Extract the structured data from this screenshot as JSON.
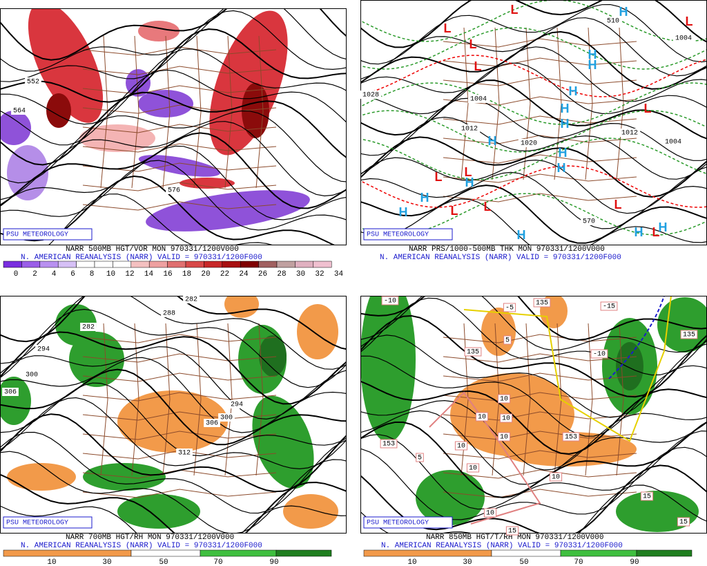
{
  "panels": [
    {
      "badge": "PSU METEOROLOGY",
      "title": "NARR 500MB HGT/VOR MON 970331/1200V000",
      "subtitle": "N. AMERICAN REANALYSIS (NARR) VALID = 970331/1200F000",
      "colorbar": [
        "0",
        "2",
        "4",
        "6",
        "8",
        "10",
        "12",
        "14",
        "16",
        "18",
        "20",
        "22",
        "24",
        "26",
        "28",
        "30",
        "32",
        "34"
      ],
      "contour_labels": [
        "552",
        "564",
        "576"
      ]
    },
    {
      "badge": "PSU METEOROLOGY",
      "title": "NARR PRS/1000-500MB THK MON 970331/1200V000",
      "subtitle": "N. AMERICAN REANALYSIS (NARR) VALID = 970331/1200F000",
      "contour_labels": [
        "1028",
        "1004",
        "1012",
        "1020",
        "1004",
        "1004",
        "510",
        "570",
        "1012"
      ],
      "centers": [
        "H",
        "H",
        "H",
        "H",
        "H",
        "H",
        "H",
        "H",
        "H",
        "H",
        "H",
        "H",
        "H",
        "H",
        "H",
        "L",
        "L",
        "L",
        "L",
        "L",
        "L",
        "L",
        "L",
        "L",
        "L",
        "L",
        "L"
      ]
    },
    {
      "badge": "PSU METEOROLOGY",
      "title": "NARR 700MB HGT/RH MON 970331/1200V000",
      "subtitle": "N. AMERICAN REANALYSIS (NARR) VALID = 970331/1200F000",
      "colorbar": [
        "10",
        "30",
        "50",
        "70",
        "90"
      ],
      "contour_labels": [
        "282",
        "288",
        "282",
        "294",
        "300",
        "306",
        "294",
        "300",
        "306",
        "312"
      ]
    },
    {
      "badge": "PSU METEOROLOGY",
      "title": "NARR 850MB HGT/T/RH MON 970331/1200V000",
      "subtitle": "N. AMERICAN REANALYSIS (NARR) VALID = 970331/1200F000",
      "colorbar": [
        "10",
        "30",
        "50",
        "70",
        "90"
      ],
      "contour_labels": [
        "-10",
        "-5",
        "-15",
        "135",
        "5",
        "135",
        "-10",
        "135",
        "153",
        "5",
        "153",
        "15",
        "15",
        "15",
        "10",
        "10",
        "10",
        "10",
        "10",
        "10",
        "10",
        "10"
      ]
    }
  ]
}
